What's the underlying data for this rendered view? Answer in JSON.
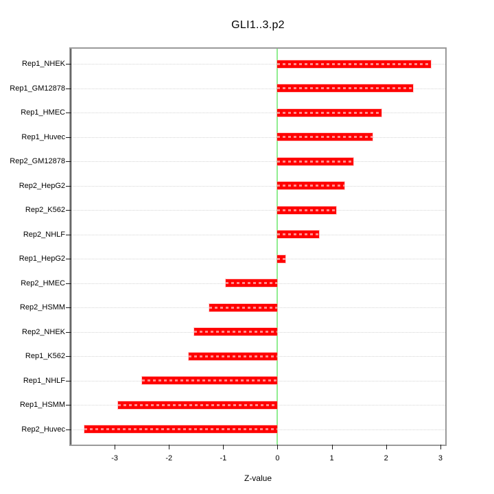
{
  "title": "GLI1..3.p2",
  "colors": {
    "bar": "#ff0000",
    "bar_dash_overlay": "rgba(255,255,255,0.55)",
    "zero_line": "#90ee90",
    "grid_line": "#d4d4d4",
    "plot_border": "#9a9a9a",
    "axis": "#1a1a1a",
    "text": "#000000"
  },
  "chart_data": {
    "type": "bar",
    "orientation": "horizontal",
    "title": "GLI1..3.p2",
    "xlabel": "Z-value",
    "ylabel": "",
    "categories": [
      "Rep1_NHEK",
      "Rep1_GM12878",
      "Rep1_HMEC",
      "Rep1_Huvec",
      "Rep2_GM12878",
      "Rep2_HepG2",
      "Rep2_K562",
      "Rep2_NHLF",
      "Rep1_HepG2",
      "Rep2_HMEC",
      "Rep2_HSMM",
      "Rep2_NHEK",
      "Rep1_K562",
      "Rep1_NHLF",
      "Rep1_HSMM",
      "Rep2_Huvec"
    ],
    "values": [
      2.83,
      2.5,
      1.92,
      1.75,
      1.4,
      1.23,
      1.08,
      0.76,
      0.15,
      -0.96,
      -1.26,
      -1.53,
      -1.64,
      -2.49,
      -2.94,
      -3.56
    ],
    "xticks": [
      -3,
      -2,
      -1,
      0,
      1,
      2,
      3
    ],
    "xtick_labels": [
      "-3",
      "-2",
      "-1",
      "0",
      "1",
      "2",
      "3"
    ],
    "xlim": [
      -3.81,
      3.09
    ],
    "grid": "horizontal dotted line at each category row",
    "zero_reference_line": true,
    "legend": "none"
  }
}
